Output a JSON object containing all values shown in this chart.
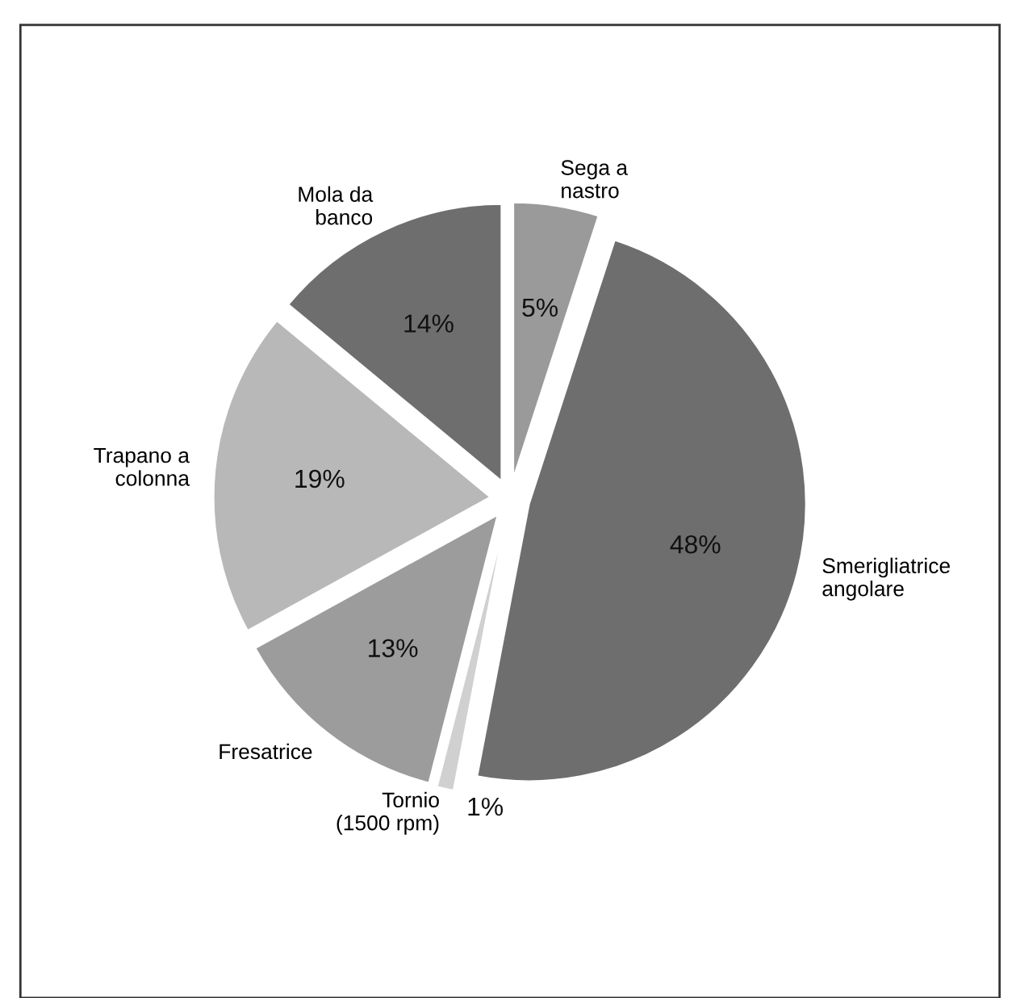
{
  "chart_data": {
    "type": "pie",
    "categories": [
      "Sega a\nnastro",
      "Smerigliatrice\nangolare",
      "Tornio\n(1500 rpm)",
      "Fresatrice",
      "Trapano a\ncolonna",
      "Mola da\nbanco"
    ],
    "values": [
      5,
      48,
      1,
      13,
      19,
      14
    ],
    "colors": [
      "#9a9a9a",
      "#6e6e6e",
      "#d0d0d0",
      "#9c9c9c",
      "#b8b8b8",
      "#6e6e6e"
    ],
    "value_labels": [
      "5%",
      "48%",
      "1%",
      "13%",
      "19%",
      "14%"
    ]
  }
}
